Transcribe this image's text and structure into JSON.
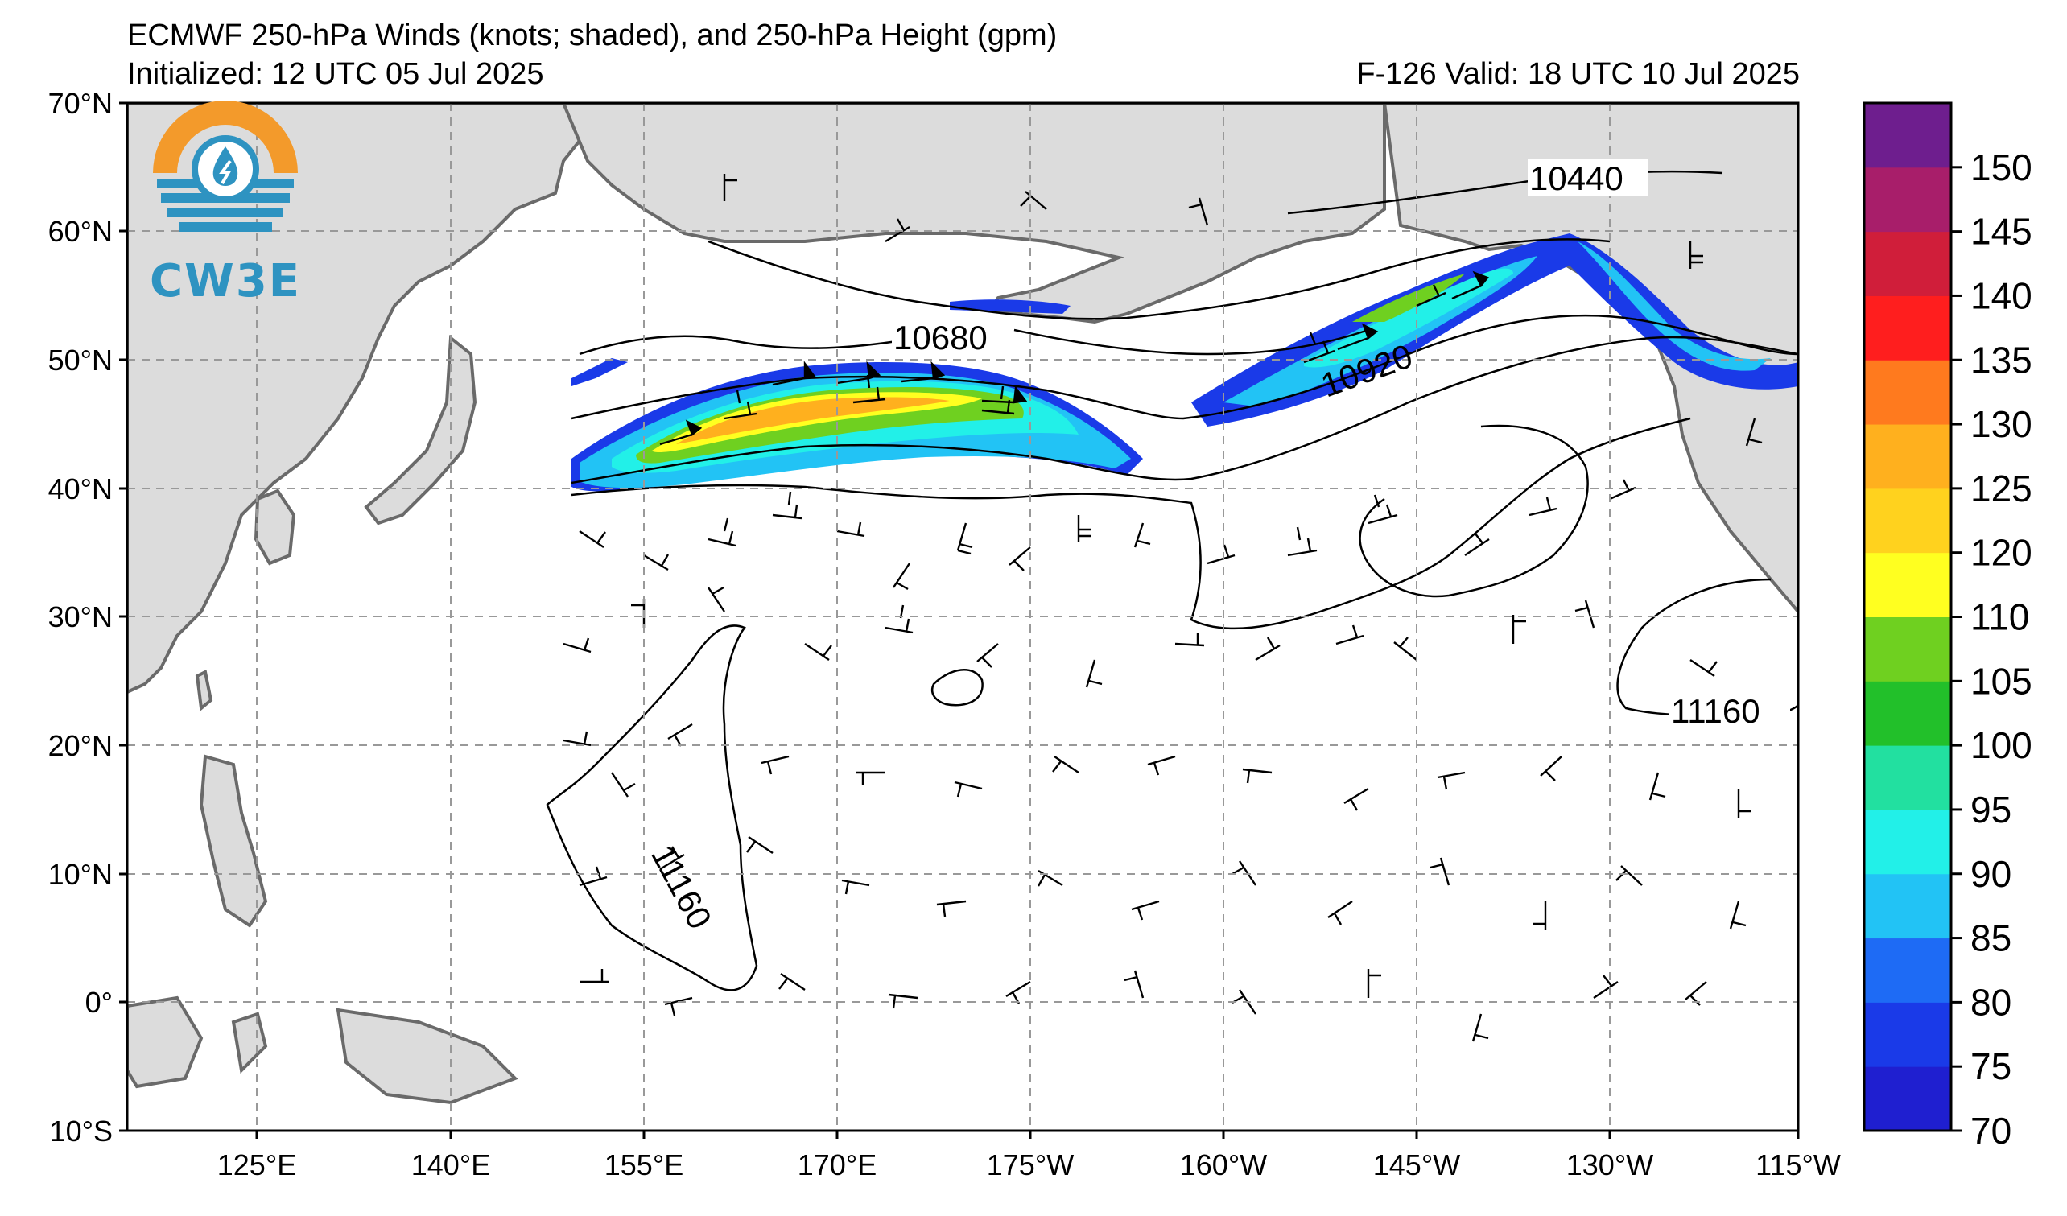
{
  "header": {
    "title": "ECMWF 250-hPa Winds (knots; shaded), and 250-hPa Height (gpm)",
    "init": "Initialized: 12 UTC 05 Jul 2025",
    "valid": "F-126  Valid: 18 UTC 10 Jul 2025"
  },
  "logo": {
    "text": "CW3E"
  },
  "axes": {
    "lat_labels": [
      "70°N",
      "60°N",
      "50°N",
      "40°N",
      "30°N",
      "20°N",
      "10°N",
      "0°",
      "10°S"
    ],
    "lon_labels": [
      "125°E",
      "140°E",
      "155°E",
      "170°E",
      "175°W",
      "160°W",
      "145°W",
      "130°W",
      "115°W"
    ]
  },
  "colorbar": {
    "ticks": [
      "70",
      "75",
      "80",
      "85",
      "90",
      "95",
      "100",
      "105",
      "110",
      "120",
      "125",
      "130",
      "135",
      "140",
      "145",
      "150"
    ],
    "colors": [
      "#1f1fd0",
      "#1a3ae8",
      "#1e6bf5",
      "#22c3f5",
      "#22f0e8",
      "#22e0a0",
      "#22c02a",
      "#6fd020",
      "#ffff20",
      "#ffd21e",
      "#ffb01e",
      "#ff7a1e",
      "#ff1e1e",
      "#d01e3a",
      "#a81e6a",
      "#6e1e8e"
    ]
  },
  "contour_labels": [
    "10440",
    "10680",
    "10920",
    "11160",
    "11160"
  ]
}
